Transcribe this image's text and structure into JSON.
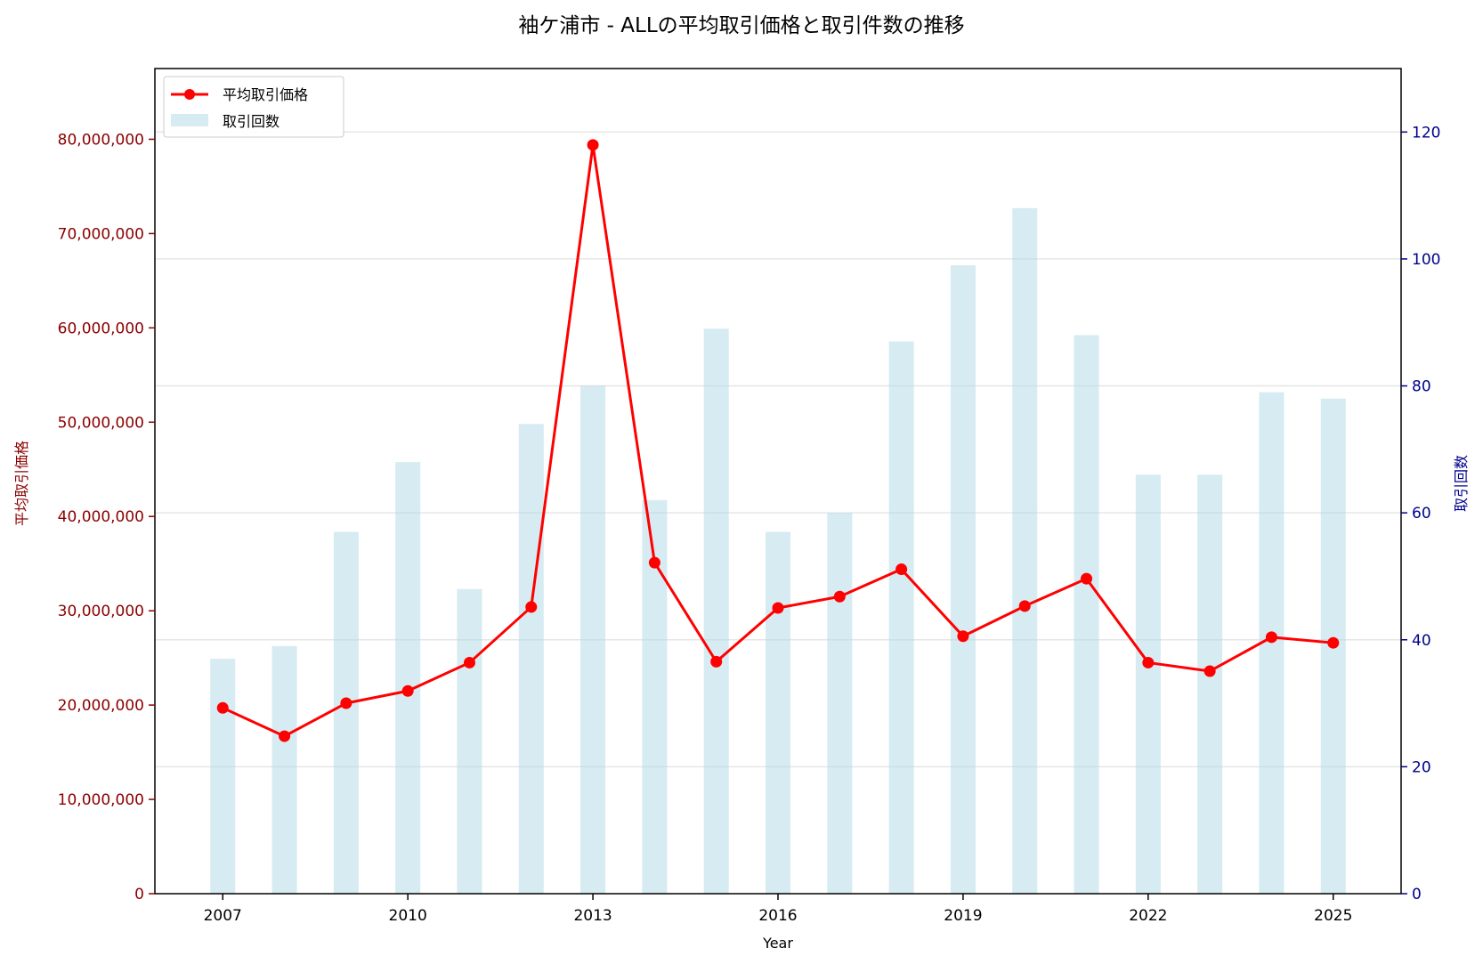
{
  "chart_data": {
    "type": "bar+line",
    "title": "袖ケ浦市 - ALLの平均取引価格と取引件数の推移",
    "xlabel": "Year",
    "ylabel_left": "平均取引価格",
    "ylabel_right": "取引回数",
    "x": [
      2007,
      2008,
      2009,
      2010,
      2011,
      2012,
      2013,
      2014,
      2015,
      2016,
      2017,
      2018,
      2019,
      2020,
      2021,
      2022,
      2023,
      2024,
      2025
    ],
    "x_ticks": [
      "2007",
      "2010",
      "2013",
      "2016",
      "2019",
      "2022",
      "2025"
    ],
    "xlim": [
      2005.9,
      2026.1
    ],
    "ylim_left": [
      0,
      87500000
    ],
    "ylim_right": [
      0,
      130
    ],
    "left_ticks": [
      "0",
      "10,000,000",
      "20,000,000",
      "30,000,000",
      "40,000,000",
      "50,000,000",
      "60,000,000",
      "70,000,000",
      "80,000,000"
    ],
    "left_tick_values": [
      0,
      10000000,
      20000000,
      30000000,
      40000000,
      50000000,
      60000000,
      70000000,
      80000000
    ],
    "right_ticks": [
      "0",
      "20",
      "40",
      "60",
      "80",
      "100",
      "120"
    ],
    "right_tick_values": [
      0,
      20,
      40,
      60,
      80,
      100,
      120
    ],
    "series": [
      {
        "name": "平均取引価格",
        "kind": "line",
        "axis": "left",
        "color": "#ff0000",
        "values": [
          19700000,
          16700000,
          20200000,
          21500000,
          24500000,
          30400000,
          79400000,
          35100000,
          24600000,
          30300000,
          31500000,
          34400000,
          27300000,
          30500000,
          33400000,
          24500000,
          23600000,
          27200000,
          26600000
        ]
      },
      {
        "name": "取引回数",
        "kind": "bar",
        "axis": "right",
        "color": "#add8e6",
        "values": [
          37,
          39,
          57,
          68,
          48,
          74,
          80,
          62,
          89,
          57,
          60,
          87,
          99,
          108,
          88,
          66,
          66,
          79,
          78
        ]
      }
    ],
    "grid": true,
    "legend_position": "top-left",
    "colors": {
      "left_axis": "#8b0000",
      "right_axis": "#00008b",
      "line": "#ff0000",
      "bar": "#add8e6"
    }
  }
}
